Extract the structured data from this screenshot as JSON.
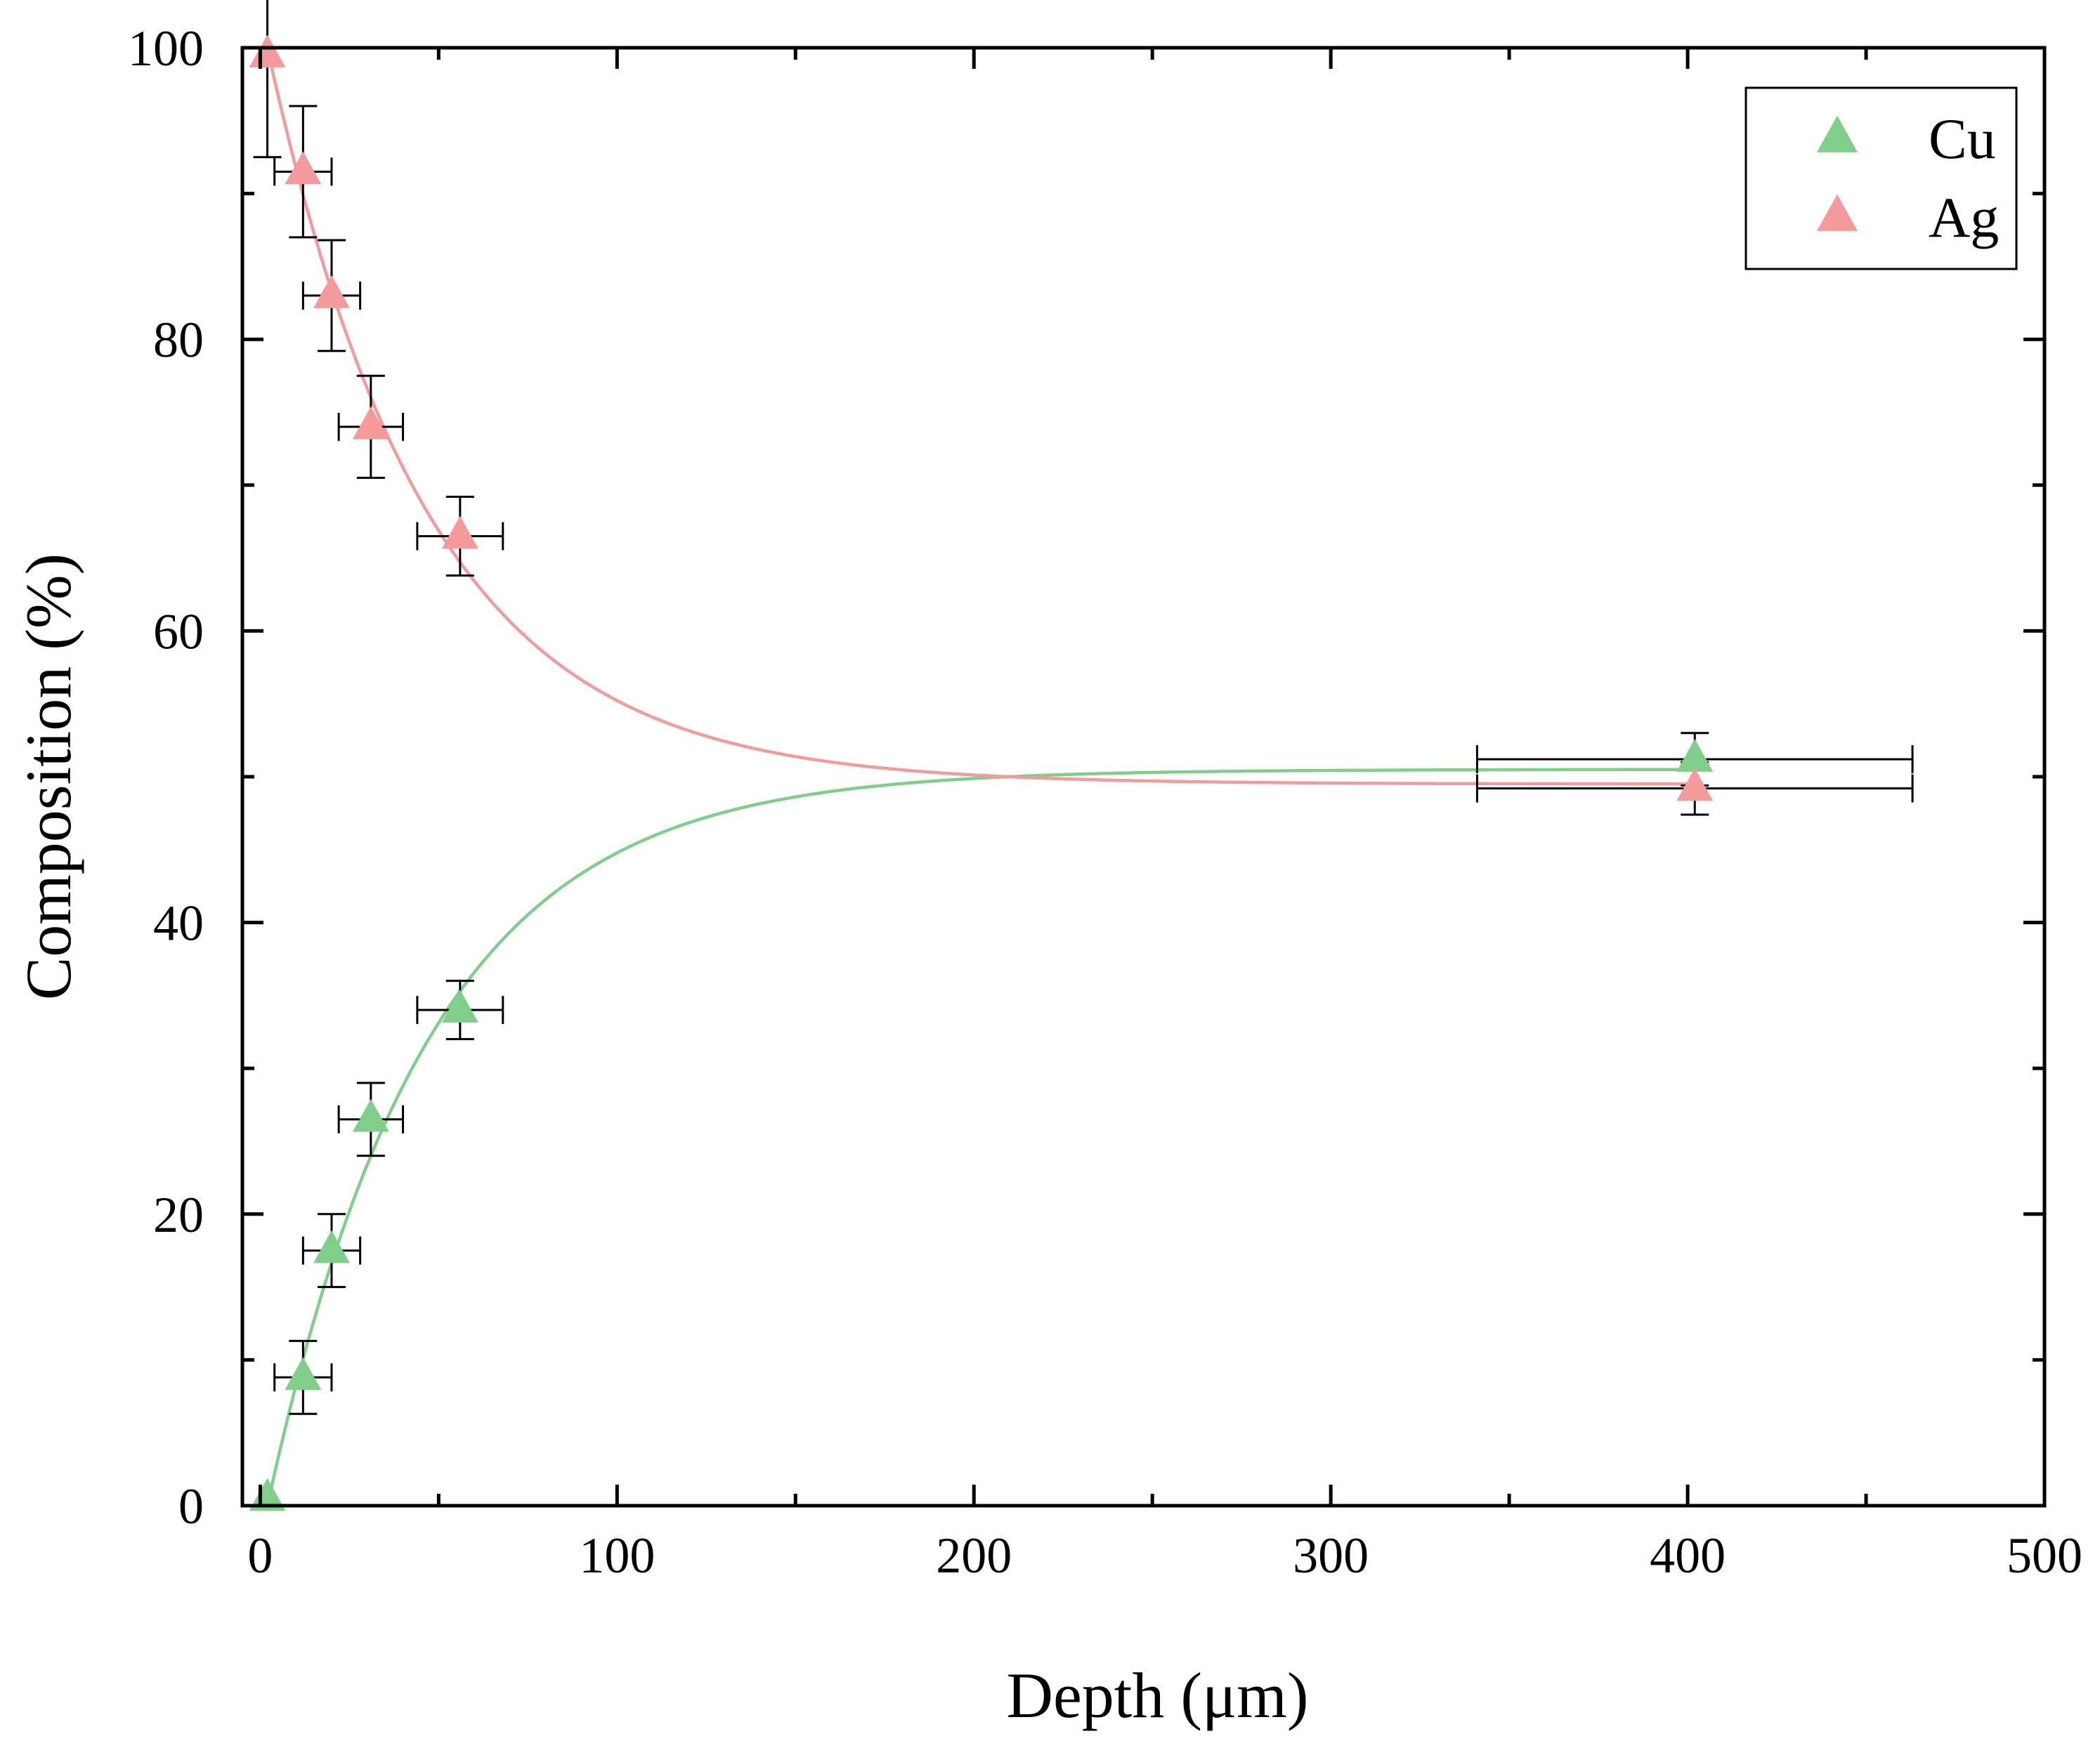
{
  "chart_data": {
    "type": "scatter",
    "title": "",
    "xlabel": "Depth (μm)",
    "ylabel": "Composition (%)",
    "xlim": [
      -5,
      500
    ],
    "ylim": [
      0,
      100
    ],
    "xticks": [
      0,
      100,
      200,
      300,
      400,
      500
    ],
    "yticks": [
      0,
      20,
      40,
      60,
      80,
      100
    ],
    "xtick_labels": [
      "0",
      "100",
      "200",
      "300",
      "400",
      "500"
    ],
    "ytick_labels": [
      "0",
      "20",
      "40",
      "60",
      "80",
      "100"
    ],
    "grid": false,
    "legend_position": "top-right",
    "series": [
      {
        "name": "Cu",
        "color": "#7fcf8a",
        "marker": "triangle",
        "x": [
          2,
          12,
          20,
          31,
          56,
          402
        ],
        "y": [
          0.5,
          8.8,
          17.5,
          26.5,
          34,
          51.2
        ],
        "xerr": [
          0,
          8,
          8,
          9,
          12,
          61
        ],
        "yerr": [
          0,
          2.5,
          2.5,
          2.5,
          2.0,
          1.8
        ],
        "fit": {
          "start": 0,
          "final": 50.5,
          "length_um": 45,
          "x0": 2
        }
      },
      {
        "name": "Ag",
        "color": "#f59a9a",
        "marker": "triangle",
        "x": [
          2,
          12,
          20,
          31,
          56,
          402
        ],
        "y": [
          99.5,
          91.5,
          83,
          74,
          66.5,
          49.2
        ],
        "xerr": [
          0,
          8,
          8,
          9,
          12,
          61
        ],
        "yerr": [
          7,
          4.5,
          3.8,
          3.5,
          2.7,
          1.8
        ],
        "fit": {
          "start": 100,
          "final": 49.5,
          "length_um": 45,
          "x0": 2
        }
      }
    ]
  }
}
